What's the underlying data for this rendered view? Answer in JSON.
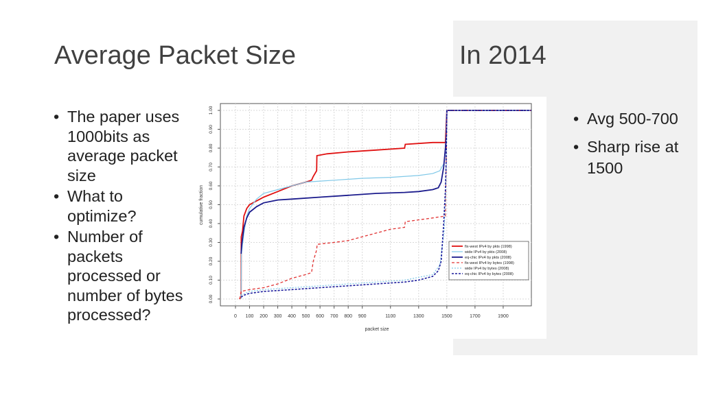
{
  "left_title": "Average Packet Size",
  "right_title": "In 2014",
  "left_bullets": [
    "The paper uses 1000bits as average packet size",
    "What to optimize?",
    "Number of packets processed or number of bytes processed?"
  ],
  "right_bullets": [
    "Avg 500-700",
    "Sharp rise at 1500"
  ],
  "chart_data": {
    "type": "line",
    "xlabel": "packet size",
    "ylabel": "cumulative fraction",
    "xlim": [
      0,
      2100
    ],
    "ylim": [
      0,
      1.0
    ],
    "xticks": [
      0,
      100,
      200,
      300,
      400,
      500,
      600,
      700,
      800,
      900,
      1100,
      1300,
      1500,
      1700,
      1900
    ],
    "yticks": [
      "0.00",
      "0.10",
      "0.20",
      "0.30",
      "0.40",
      "0.50",
      "0.60",
      "0.70",
      "0.80",
      "0.90",
      "1.00"
    ],
    "grid": true,
    "legend_position": "right-middle",
    "series": [
      {
        "name": "fix-west  IPv4 by pkts (1998)",
        "color": "#e01010",
        "dash": "solid",
        "width": 1.8,
        "points": [
          [
            28,
            0
          ],
          [
            40,
            0.01
          ],
          [
            41,
            0.33
          ],
          [
            50,
            0.36
          ],
          [
            60,
            0.44
          ],
          [
            80,
            0.48
          ],
          [
            100,
            0.5
          ],
          [
            200,
            0.54
          ],
          [
            300,
            0.57
          ],
          [
            400,
            0.6
          ],
          [
            500,
            0.62
          ],
          [
            540,
            0.63
          ],
          [
            552,
            0.65
          ],
          [
            576,
            0.68
          ],
          [
            578,
            0.76
          ],
          [
            650,
            0.77
          ],
          [
            800,
            0.78
          ],
          [
            1000,
            0.79
          ],
          [
            1200,
            0.8
          ],
          [
            1205,
            0.82
          ],
          [
            1400,
            0.83
          ],
          [
            1490,
            0.83
          ],
          [
            1500,
            1.0
          ],
          [
            2100,
            1.0
          ]
        ]
      },
      {
        "name": "wide      IPv4 by pkts (2008)",
        "color": "#7fc8e8",
        "dash": "solid",
        "width": 1.2,
        "points": [
          [
            40,
            0
          ],
          [
            42,
            0.24
          ],
          [
            60,
            0.35
          ],
          [
            80,
            0.44
          ],
          [
            100,
            0.48
          ],
          [
            150,
            0.53
          ],
          [
            200,
            0.56
          ],
          [
            300,
            0.58
          ],
          [
            400,
            0.6
          ],
          [
            500,
            0.62
          ],
          [
            600,
            0.625
          ],
          [
            700,
            0.63
          ],
          [
            900,
            0.64
          ],
          [
            1100,
            0.645
          ],
          [
            1300,
            0.655
          ],
          [
            1400,
            0.665
          ],
          [
            1450,
            0.68
          ],
          [
            1480,
            0.72
          ],
          [
            1492,
            0.82
          ],
          [
            1500,
            1.0
          ],
          [
            2100,
            1.0
          ]
        ]
      },
      {
        "name": "eq-chic   IPv4 by pkts (2008)",
        "color": "#1a1a8c",
        "dash": "solid",
        "width": 1.8,
        "points": [
          [
            40,
            0.24
          ],
          [
            45,
            0.29
          ],
          [
            60,
            0.38
          ],
          [
            80,
            0.43
          ],
          [
            100,
            0.46
          ],
          [
            150,
            0.49
          ],
          [
            200,
            0.51
          ],
          [
            300,
            0.525
          ],
          [
            400,
            0.53
          ],
          [
            600,
            0.54
          ],
          [
            800,
            0.55
          ],
          [
            1000,
            0.56
          ],
          [
            1200,
            0.565
          ],
          [
            1300,
            0.57
          ],
          [
            1400,
            0.58
          ],
          [
            1440,
            0.59
          ],
          [
            1460,
            0.62
          ],
          [
            1478,
            0.7
          ],
          [
            1490,
            0.8
          ],
          [
            1496,
            0.86
          ],
          [
            1500,
            1.0
          ],
          [
            2100,
            1.0
          ]
        ]
      },
      {
        "name": "fix-west  IPv4 by bytes (1998)",
        "color": "#e03030",
        "dash": "4,3",
        "width": 1.3,
        "points": [
          [
            30,
            0
          ],
          [
            40,
            0.04
          ],
          [
            100,
            0.05
          ],
          [
            200,
            0.06
          ],
          [
            300,
            0.08
          ],
          [
            400,
            0.11
          ],
          [
            500,
            0.13
          ],
          [
            540,
            0.14
          ],
          [
            552,
            0.2
          ],
          [
            576,
            0.26
          ],
          [
            580,
            0.29
          ],
          [
            700,
            0.3
          ],
          [
            800,
            0.31
          ],
          [
            1000,
            0.35
          ],
          [
            1100,
            0.37
          ],
          [
            1200,
            0.38
          ],
          [
            1205,
            0.41
          ],
          [
            1400,
            0.43
          ],
          [
            1490,
            0.44
          ],
          [
            1500,
            1.0
          ],
          [
            2100,
            1.0
          ]
        ]
      },
      {
        "name": "wide      IPv4 by bytes (2008)",
        "color": "#7fc8e8",
        "dash": "2,2",
        "width": 1.2,
        "points": [
          [
            40,
            0.02
          ],
          [
            100,
            0.04
          ],
          [
            200,
            0.05
          ],
          [
            400,
            0.06
          ],
          [
            600,
            0.07
          ],
          [
            800,
            0.08
          ],
          [
            1000,
            0.09
          ],
          [
            1200,
            0.1
          ],
          [
            1400,
            0.13
          ],
          [
            1450,
            0.18
          ],
          [
            1480,
            0.35
          ],
          [
            1492,
            0.55
          ],
          [
            1500,
            1.0
          ],
          [
            2100,
            1.0
          ]
        ]
      },
      {
        "name": "eq-chic   IPv4 by bytes (2008)",
        "color": "#1a1a9c",
        "dash": "3,2",
        "width": 1.6,
        "points": [
          [
            40,
            0.01
          ],
          [
            60,
            0.02
          ],
          [
            100,
            0.03
          ],
          [
            200,
            0.04
          ],
          [
            400,
            0.05
          ],
          [
            600,
            0.06
          ],
          [
            800,
            0.07
          ],
          [
            1000,
            0.08
          ],
          [
            1200,
            0.09
          ],
          [
            1300,
            0.1
          ],
          [
            1400,
            0.12
          ],
          [
            1440,
            0.15
          ],
          [
            1460,
            0.2
          ],
          [
            1478,
            0.4
          ],
          [
            1490,
            0.58
          ],
          [
            1496,
            0.75
          ],
          [
            1500,
            1.0
          ],
          [
            2100,
            1.0
          ]
        ]
      }
    ]
  }
}
